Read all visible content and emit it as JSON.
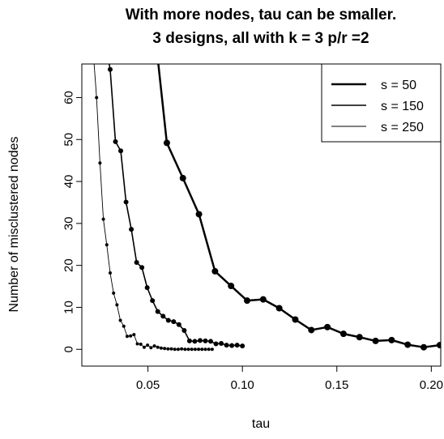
{
  "chart_data": {
    "type": "line",
    "title": "With more nodes, tau can be smaller.",
    "subtitle": "3 designs, all with  k = 3   p/r =2",
    "xlabel": "tau",
    "ylabel": "Number of misclustered nodes",
    "xlim": [
      0.015,
      0.205
    ],
    "ylim": [
      -4,
      68
    ],
    "xticks": [
      0.05,
      0.1,
      0.15,
      0.2
    ],
    "xtick_labels": [
      "0.05",
      "0.10",
      "0.15",
      "0.20"
    ],
    "yticks": [
      0,
      10,
      20,
      30,
      40,
      50,
      60
    ],
    "ytick_labels": [
      "0",
      "10",
      "20",
      "30",
      "40",
      "50",
      "60"
    ],
    "grid": false,
    "legend_position": "top-right",
    "series": [
      {
        "name": "s = 50",
        "line_width": 2.5,
        "point_radius": 4,
        "x": [
          0.06,
          0.0685,
          0.077,
          0.0855,
          0.094,
          0.1025,
          0.111,
          0.1195,
          0.128,
          0.1365,
          0.145,
          0.1535,
          0.162,
          0.1705,
          0.179,
          0.1875,
          0.196,
          0.2045
        ],
        "y": [
          49.2,
          40.8,
          32.2,
          18.6,
          15.1,
          11.6,
          11.9,
          9.8,
          7.1,
          4.6,
          5.3,
          3.7,
          2.9,
          2.0,
          2.2,
          1.1,
          0.5,
          1.0
        ],
        "extend_to": [
          0.0555,
          68
        ]
      },
      {
        "name": "s = 150",
        "line_width": 1.6,
        "point_radius": 3,
        "x": [
          0.03,
          0.0328,
          0.0356,
          0.0384,
          0.0412,
          0.044,
          0.0468,
          0.0496,
          0.0524,
          0.0552,
          0.058,
          0.0608,
          0.0636,
          0.0664,
          0.0692,
          0.072,
          0.0748,
          0.0776,
          0.0804,
          0.0832,
          0.086,
          0.0888,
          0.0916,
          0.0944,
          0.0972,
          0.1
        ],
        "y": [
          66.7,
          49.5,
          47.3,
          35.1,
          28.6,
          20.7,
          19.5,
          14.7,
          11.6,
          9.0,
          7.9,
          6.9,
          6.6,
          5.9,
          4.5,
          2.0,
          1.9,
          2.1,
          2.0,
          1.9,
          1.3,
          1.4,
          1.0,
          0.9,
          1.0,
          0.8
        ],
        "extend_to": [
          0.0295,
          68
        ]
      },
      {
        "name": "s = 250",
        "line_width": 0.9,
        "point_radius": 2,
        "x": [
          0.0228,
          0.0246,
          0.0264,
          0.0282,
          0.03,
          0.0318,
          0.0336,
          0.0354,
          0.0372,
          0.039,
          0.0408,
          0.0426,
          0.0444,
          0.0462,
          0.048,
          0.0498,
          0.0516,
          0.0534,
          0.0552,
          0.057,
          0.0588,
          0.0606,
          0.0624,
          0.0642,
          0.066,
          0.0678,
          0.0696,
          0.0714,
          0.0732,
          0.075,
          0.0768,
          0.0786,
          0.0804,
          0.0822,
          0.084
        ],
        "y": [
          60.0,
          44.4,
          31.0,
          24.9,
          18.2,
          13.4,
          10.6,
          6.9,
          5.5,
          3.1,
          3.2,
          3.5,
          1.3,
          1.2,
          0.5,
          1.0,
          0.4,
          0.8,
          0.5,
          0.3,
          0.2,
          0.1,
          0.1,
          0.0,
          0.0,
          0.1,
          0.0,
          0.0,
          0.0,
          0.0,
          0.0,
          0.0,
          0.0,
          0.0,
          0.0
        ],
        "extend_to": [
          0.0215,
          68
        ]
      }
    ]
  }
}
